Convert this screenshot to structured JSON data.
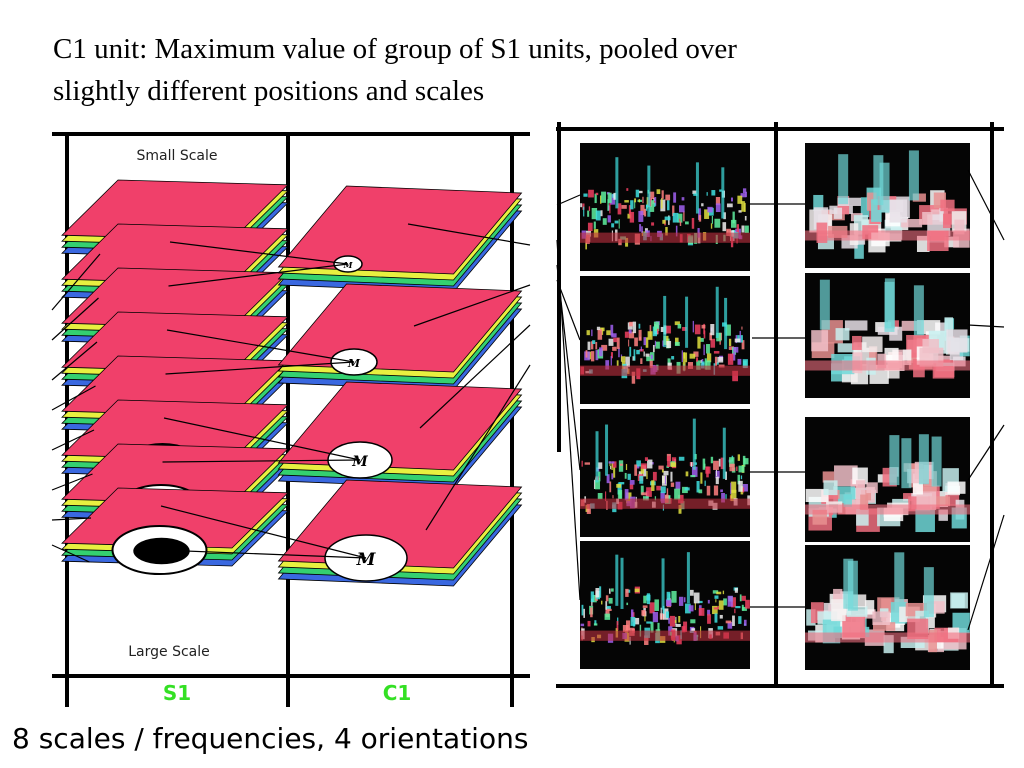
{
  "title_line1": "C1 unit: Maximum value of group of S1 units, pooled over",
  "title_line2": "slightly different positions and scales",
  "caption": "8 scales / frequencies, 4 orientations",
  "left_diagram": {
    "small_scale_label": "Small Scale",
    "large_scale_label": "Large Scale",
    "s1_label": "S1",
    "c1_label": "C1",
    "c1_unit_letter": "M",
    "s1_band_count": 8,
    "c1_band_count": 4,
    "layer_colors": [
      "#3a68e0",
      "#34d070",
      "#e8f040",
      "#f0406a"
    ],
    "label_color": "#34e024"
  },
  "right_figure": {
    "s1_image_count": 4,
    "c1_image_count": 4
  }
}
